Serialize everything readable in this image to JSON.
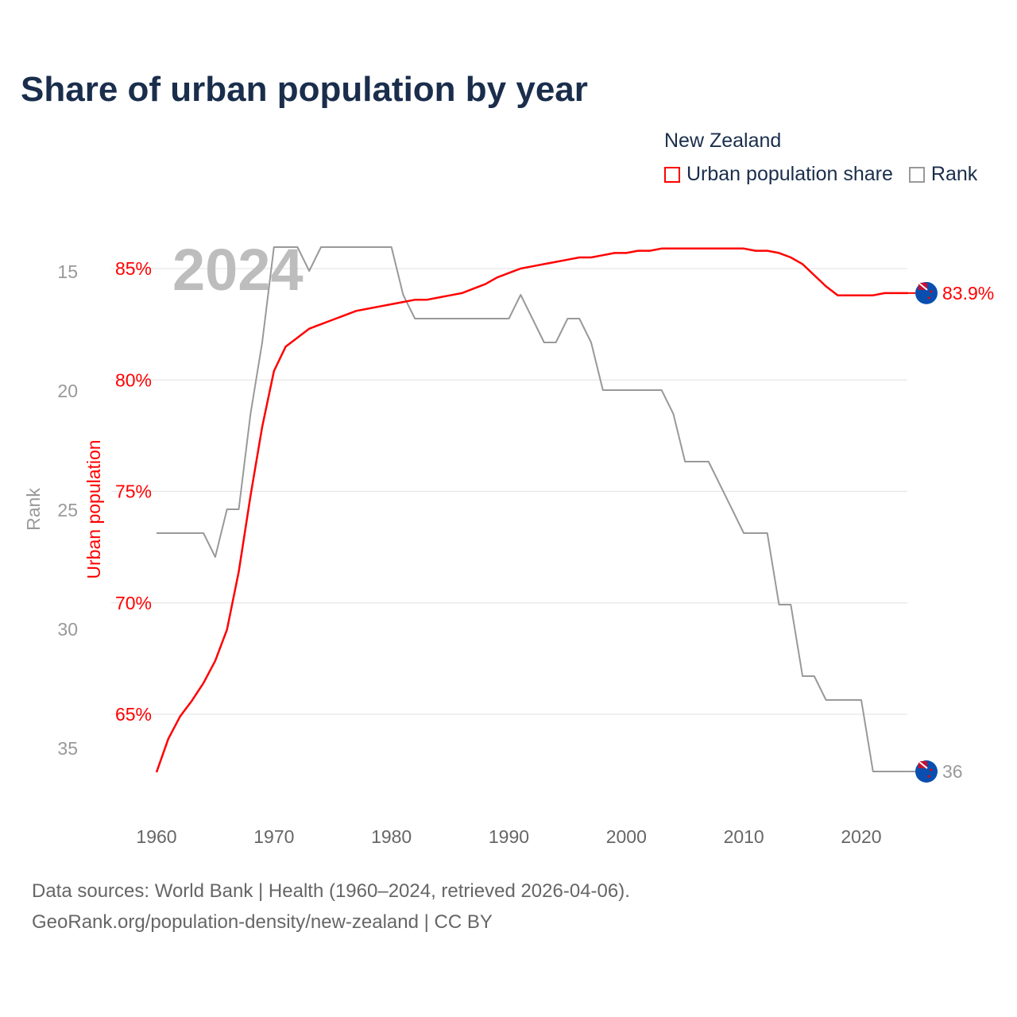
{
  "title": "Share of urban population by year",
  "legend": {
    "title": "New Zealand",
    "items": [
      {
        "label": "Urban population share",
        "color": "#ff0000"
      },
      {
        "label": "Rank",
        "color": "#999999"
      }
    ]
  },
  "sources": [
    "Data sources: World Bank | Health (1960–2024, retrieved 2026-04-06).",
    "GeoRank.org/population-density/new-zealand | CC BY"
  ],
  "chart_data": {
    "type": "line",
    "title": "Share of urban population by year",
    "watermark": "2024",
    "x": [
      1960,
      1961,
      1962,
      1963,
      1964,
      1965,
      1966,
      1967,
      1968,
      1969,
      1970,
      1971,
      1972,
      1973,
      1974,
      1975,
      1976,
      1977,
      1978,
      1979,
      1980,
      1981,
      1982,
      1983,
      1984,
      1985,
      1986,
      1987,
      1988,
      1989,
      1990,
      1991,
      1992,
      1993,
      1994,
      1995,
      1996,
      1997,
      1998,
      1999,
      2000,
      2001,
      2002,
      2003,
      2004,
      2005,
      2006,
      2007,
      2008,
      2009,
      2010,
      2011,
      2012,
      2013,
      2014,
      2015,
      2016,
      2017,
      2018,
      2019,
      2020,
      2021,
      2022,
      2023,
      2024
    ],
    "xticks": [
      "1960",
      "1970",
      "1980",
      "1990",
      "2000",
      "2010",
      "2020"
    ],
    "series": [
      {
        "name": "Urban population share",
        "axis": "left",
        "ylabel": "Urban population",
        "color": "#ff0000",
        "ylim": [
          61.5,
          87
        ],
        "yticks": [
          "65%",
          "70%",
          "75%",
          "80%",
          "85%"
        ],
        "ytick_values": [
          65,
          70,
          75,
          80,
          85
        ],
        "end_label": "83.9%",
        "values": [
          62.4,
          63.9,
          64.9,
          65.6,
          66.4,
          67.4,
          68.8,
          71.4,
          74.8,
          77.9,
          80.4,
          81.5,
          81.9,
          82.3,
          82.5,
          82.7,
          82.9,
          83.1,
          83.2,
          83.3,
          83.4,
          83.5,
          83.6,
          83.6,
          83.7,
          83.8,
          83.9,
          84.1,
          84.3,
          84.6,
          84.8,
          85.0,
          85.1,
          85.2,
          85.3,
          85.4,
          85.5,
          85.5,
          85.6,
          85.7,
          85.7,
          85.8,
          85.8,
          85.9,
          85.9,
          85.9,
          85.9,
          85.9,
          85.9,
          85.9,
          85.9,
          85.8,
          85.8,
          85.7,
          85.5,
          85.2,
          84.7,
          84.2,
          83.8,
          83.8,
          83.8,
          83.8,
          83.9,
          83.9,
          83.9
        ]
      },
      {
        "name": "Rank",
        "axis": "left-outer",
        "ylabel": "Rank",
        "color": "#999999",
        "inverted": true,
        "yticks": [
          "15",
          "20",
          "25",
          "30",
          "35"
        ],
        "ytick_values": [
          15,
          20,
          25,
          30,
          35
        ],
        "end_label": "36",
        "values": [
          26,
          26,
          26,
          26,
          26,
          27,
          25,
          25,
          21,
          18,
          14,
          14,
          14,
          15,
          14,
          14,
          14,
          14,
          14,
          14,
          14,
          16,
          17,
          17,
          17,
          17,
          17,
          17,
          17,
          17,
          17,
          16,
          17,
          18,
          18,
          17,
          17,
          18,
          20,
          20,
          20,
          20,
          20,
          20,
          21,
          23,
          23,
          23,
          24,
          25,
          26,
          26,
          26,
          29,
          29,
          32,
          32,
          33,
          33,
          33,
          33,
          36,
          36,
          36,
          36
        ]
      }
    ]
  }
}
